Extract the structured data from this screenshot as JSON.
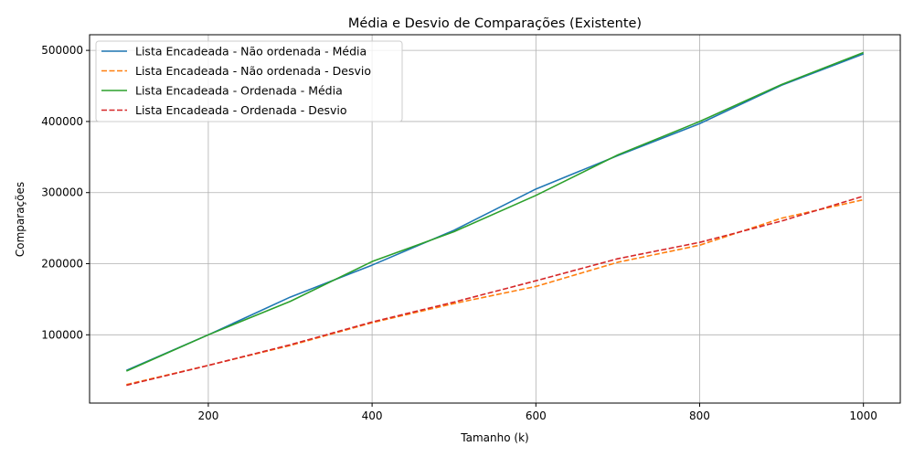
{
  "chart_data": {
    "type": "line",
    "title": "Média e Desvio de Comparações (Existente)",
    "xlabel": "Tamanho (k)",
    "ylabel": "Comparações",
    "x": [
      100,
      200,
      300,
      400,
      500,
      600,
      700,
      800,
      900,
      1000
    ],
    "xlim": [
      55,
      1045
    ],
    "ylim": [
      4000,
      522000
    ],
    "xticks": [
      200,
      400,
      600,
      800,
      1000
    ],
    "yticks": [
      100000,
      200000,
      300000,
      400000,
      500000
    ],
    "grid": true,
    "legend_position": "top-left",
    "series": [
      {
        "name": "Lista Encadeada - Não ordenada - Média",
        "color": "#1f77b4",
        "dashed": false,
        "values": [
          50000,
          100000,
          153000,
          198000,
          247000,
          305000,
          352000,
          397000,
          451000,
          495000
        ]
      },
      {
        "name": "Lista Encadeada - Não ordenada - Desvio",
        "color": "#ff7f0e",
        "dashed": true,
        "values": [
          30000,
          57000,
          85000,
          117000,
          144000,
          168000,
          202000,
          226000,
          264000,
          290000
        ]
      },
      {
        "name": "Lista Encadeada - Ordenada - Média",
        "color": "#2ca02c",
        "dashed": false,
        "values": [
          49000,
          100000,
          147000,
          203000,
          245000,
          296000,
          353000,
          400000,
          452000,
          497000
        ]
      },
      {
        "name": "Lista Encadeada - Ordenada - Desvio",
        "color": "#d62728",
        "dashed": true,
        "values": [
          29000,
          57000,
          86000,
          118000,
          146000,
          176000,
          207000,
          230000,
          260000,
          295000
        ]
      }
    ]
  }
}
